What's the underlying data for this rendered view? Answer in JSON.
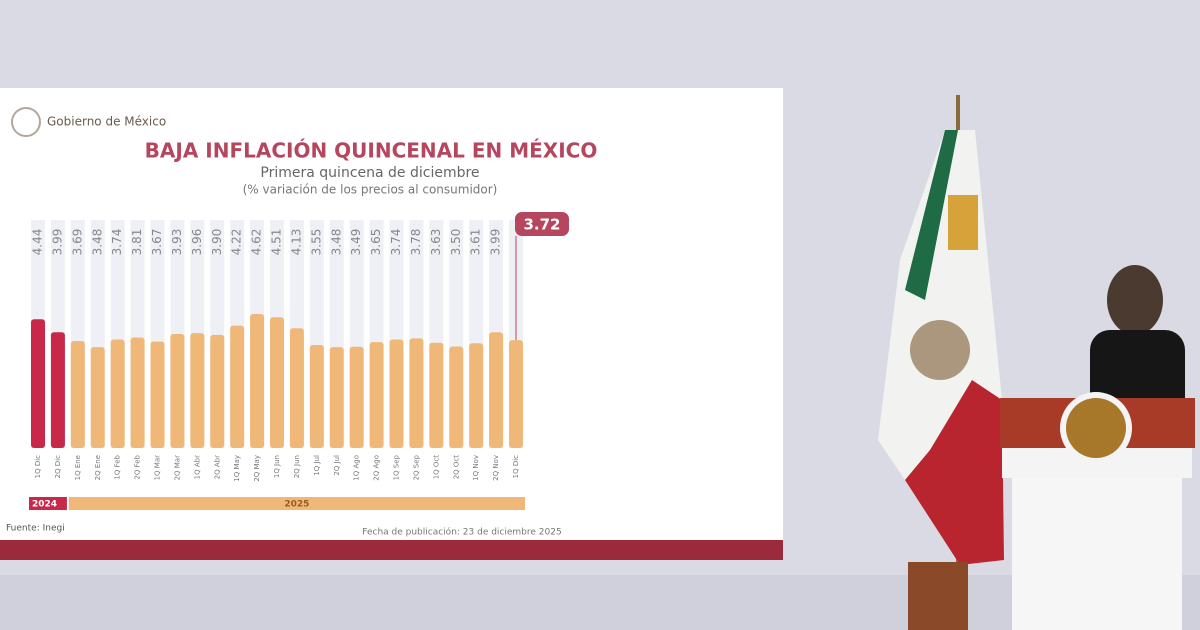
{
  "brand": "Gobierno de México",
  "chart_data": {
    "type": "bar",
    "title": "BAJA INFLACIÓN QUINCENAL EN MÉXICO",
    "subtitle": "Primera quincena de diciembre",
    "y_label": "(% variación de los precios al consumidor)",
    "categories": [
      "1Q Dic",
      "2Q Dic",
      "1Q Ene",
      "2Q Ene",
      "1Q Feb",
      "2Q Feb",
      "1Q Mar",
      "2Q Mar",
      "1Q Abr",
      "2Q Abr",
      "1Q May",
      "2Q May",
      "1Q Jun",
      "2Q Jun",
      "1Q Jul",
      "2Q Jul",
      "1Q Ago",
      "2Q Ago",
      "1Q Sep",
      "2Q Sep",
      "1Q Oct",
      "2Q Oct",
      "1Q Nov",
      "2Q Nov",
      "1Q Dic"
    ],
    "series": [
      {
        "name": "2024",
        "color": "#c8284a",
        "values": [
          4.44,
          3.99,
          null,
          null,
          null,
          null,
          null,
          null,
          null,
          null,
          null,
          null,
          null,
          null,
          null,
          null,
          null,
          null,
          null,
          null,
          null,
          null,
          null,
          null,
          null
        ],
        "value_labels": [
          "4.44",
          "3.99",
          null,
          null,
          null,
          null,
          null,
          null,
          null,
          null,
          null,
          null,
          null,
          null,
          null,
          null,
          null,
          null,
          null,
          null,
          null,
          null,
          null,
          null,
          null
        ]
      },
      {
        "name": "2025",
        "color": "#f0b878",
        "values": [
          null,
          null,
          3.69,
          3.48,
          3.74,
          3.81,
          3.67,
          3.93,
          3.96,
          3.9,
          4.22,
          4.62,
          4.51,
          4.13,
          3.55,
          3.48,
          3.49,
          3.65,
          3.74,
          3.78,
          3.63,
          3.5,
          3.61,
          3.99,
          3.72
        ],
        "value_labels": [
          null,
          null,
          "3.69",
          "3.48",
          "3.74",
          "3.81",
          "3.67",
          "3.93",
          "3.96",
          "3.90",
          "4.22",
          "4.62",
          "4.51",
          "4.13",
          "3.55",
          "3.48",
          "3.49",
          "3.65",
          "3.74",
          "3.78",
          "3.63",
          "3.50",
          "3.61",
          "3.99",
          "3.72"
        ]
      }
    ],
    "source": "Fuente: Inegi",
    "date_note": "Fecha de publicación: 23 de diciembre 2025"
  }
}
